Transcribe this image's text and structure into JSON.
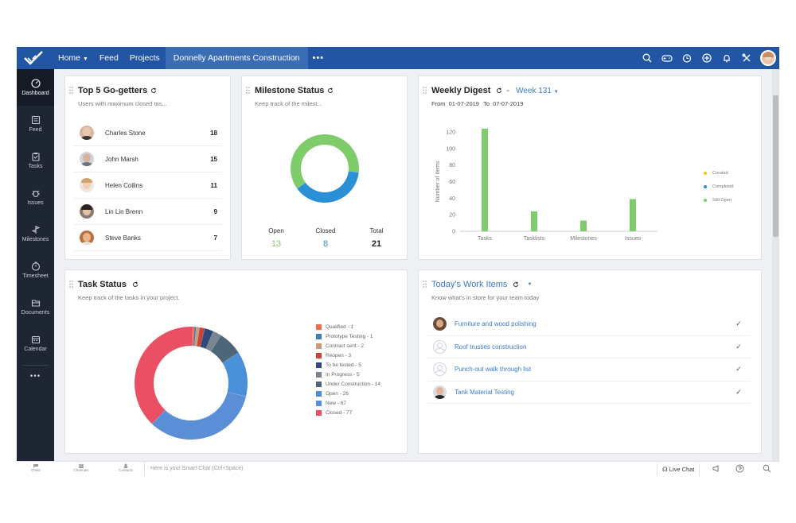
{
  "nav": {
    "home": "Home",
    "feed": "Feed",
    "projects": "Projects",
    "active_project": "Donnelly Apartments Construction",
    "more": "•••"
  },
  "top_icons": [
    "search-icon",
    "gamepad-icon",
    "timer-icon",
    "plus-circle-icon",
    "bell-icon",
    "tools-icon",
    "user-avatar"
  ],
  "sidebar": {
    "items": [
      {
        "label": "Dashboard",
        "icon": "dashboard-icon",
        "active": true
      },
      {
        "label": "Feed",
        "icon": "feed-icon"
      },
      {
        "label": "Tasks",
        "icon": "tasks-icon"
      },
      {
        "label": "Issues",
        "icon": "bug-icon"
      },
      {
        "label": "Milestones",
        "icon": "milestone-icon"
      },
      {
        "label": "Timesheet",
        "icon": "clock-icon"
      },
      {
        "label": "Documents",
        "icon": "documents-icon"
      },
      {
        "label": "Calendar",
        "icon": "calendar-icon"
      }
    ],
    "more": "•••"
  },
  "go_getters": {
    "title": "Top 5 Go-getters",
    "subtitle": "Users with maximum closed tas...",
    "rows": [
      {
        "name": "Charles Stone",
        "value": "18"
      },
      {
        "name": "John Marsh",
        "value": "15"
      },
      {
        "name": "Helen Collins",
        "value": "11"
      },
      {
        "name": "Lin Lin Brenn",
        "value": "9"
      },
      {
        "name": "Steve Banks",
        "value": "7"
      }
    ]
  },
  "milestone": {
    "title": "Milestone Status",
    "subtitle": "Keep track of the milest...",
    "open_label": "Open",
    "open_value": "13",
    "closed_label": "Closed",
    "closed_value": "8",
    "total_label": "Total",
    "total_value": "21",
    "colors": {
      "open": "#7fcc6b",
      "closed": "#2b8fd6"
    }
  },
  "weekly_digest": {
    "title": "Weekly Digest",
    "separator": "-",
    "week": "Week 131",
    "from_label": "From",
    "from_date": "01-07-2019",
    "to_label": "To",
    "to_date": "07-07-2019",
    "legend": [
      {
        "label": "Created",
        "color": "#f5c518"
      },
      {
        "label": "Completed",
        "color": "#2b8fd6"
      },
      {
        "label": "Still Open",
        "color": "#7fcc6b"
      }
    ]
  },
  "task_status": {
    "title": "Task Status",
    "subtitle": "Keep track of the tasks in your project."
  },
  "work_items": {
    "title": "Today's Work Items",
    "subtitle": "Know what's in store for your team today",
    "rows": [
      {
        "title": "Furniture and wood polishing",
        "check": "✓"
      },
      {
        "title": "Roof trusses construction",
        "check": "✓"
      },
      {
        "title": "Punch-out walk through list",
        "check": "✓"
      },
      {
        "title": "Tank Material Testing",
        "check": "✓"
      }
    ]
  },
  "bottom": {
    "tabs": [
      "Chats",
      "Channels",
      "Contacts"
    ],
    "chat_placeholder": "Here is your Smart Chat (Ctrl+Space)",
    "live_chat": "Live Chat"
  },
  "chart_data": [
    {
      "type": "bar",
      "ylabel": "Number of Items",
      "categories": [
        "Tasks",
        "Tasklists",
        "Milestones",
        "Issues"
      ],
      "ylim": [
        0,
        120
      ],
      "yticks": [
        0,
        20,
        40,
        60,
        80,
        100,
        120
      ],
      "series": [
        {
          "name": "Still Open",
          "values": [
            124,
            24,
            13,
            39
          ],
          "color": "#7fcc6b"
        }
      ],
      "legend_position": "right"
    },
    {
      "type": "pie",
      "series": [
        {
          "name": "Qualified - 1",
          "value": 1,
          "color": "#f26b4f"
        },
        {
          "name": "Prototype Testing - 1",
          "value": 1,
          "color": "#3d7fb5"
        },
        {
          "name": "Contract sent - 2",
          "value": 2,
          "color": "#c99a78"
        },
        {
          "name": "Reopen - 3",
          "value": 3,
          "color": "#c9453c"
        },
        {
          "name": "To be tested - 5",
          "value": 5,
          "color": "#2f4a7a"
        },
        {
          "name": "In Progress - 5",
          "value": 5,
          "color": "#7a8593"
        },
        {
          "name": "Under Construction - 14",
          "value": 14,
          "color": "#4f6578"
        },
        {
          "name": "Open - 26",
          "value": 26,
          "color": "#4a90d9"
        },
        {
          "name": "New - 67",
          "value": 67,
          "color": "#5a8fd8"
        },
        {
          "name": "Closed - 77",
          "value": 77,
          "color": "#ea4f63"
        }
      ],
      "legend_position": "right"
    },
    {
      "type": "pie",
      "series": [
        {
          "name": "Open",
          "value": 13,
          "color": "#7fcc6b"
        },
        {
          "name": "Closed",
          "value": 8,
          "color": "#2b8fd6"
        }
      ]
    }
  ]
}
